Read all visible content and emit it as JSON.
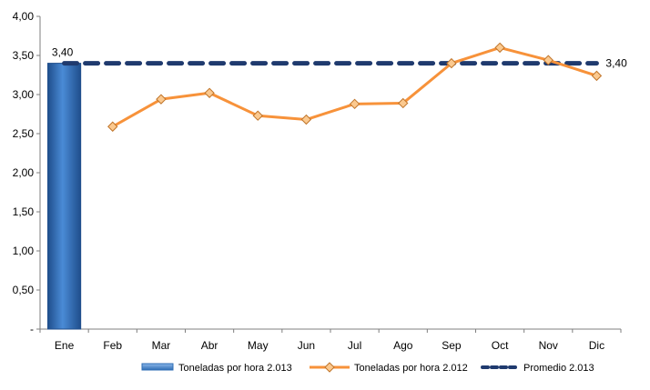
{
  "chart_data": {
    "type": "bar-line",
    "categories": [
      "Ene",
      "Feb",
      "Mar",
      "Abr",
      "May",
      "Jun",
      "Jul",
      "Ago",
      "Sep",
      "Oct",
      "Nov",
      "Dic"
    ],
    "y_ticks": [
      "-",
      "0,50",
      "1,00",
      "1,50",
      "2,00",
      "2,50",
      "3,00",
      "3,50",
      "4,00"
    ],
    "ylim": [
      0,
      4
    ],
    "grid": false,
    "legend_position": "bottom",
    "series": [
      {
        "name": "Toneladas por hora 2.013",
        "type": "bar",
        "color": "#2E6DB4",
        "values": [
          3.4,
          null,
          null,
          null,
          null,
          null,
          null,
          null,
          null,
          null,
          null,
          null
        ],
        "data_label": "3,40"
      },
      {
        "name": "Toneladas por hora 2.012",
        "type": "line",
        "color": "#F7923A",
        "marker_color": "#FBC98F",
        "values": [
          null,
          2.59,
          2.94,
          3.02,
          2.73,
          2.68,
          2.88,
          2.89,
          3.4,
          3.6,
          3.44,
          3.24
        ]
      },
      {
        "name": "Promedio 2.013",
        "type": "dashed-line",
        "color": "#1F3A6E",
        "values": [
          3.4,
          3.4,
          3.4,
          3.4,
          3.4,
          3.4,
          3.4,
          3.4,
          3.4,
          3.4,
          3.4,
          3.4
        ],
        "data_label": "3,40"
      }
    ]
  }
}
